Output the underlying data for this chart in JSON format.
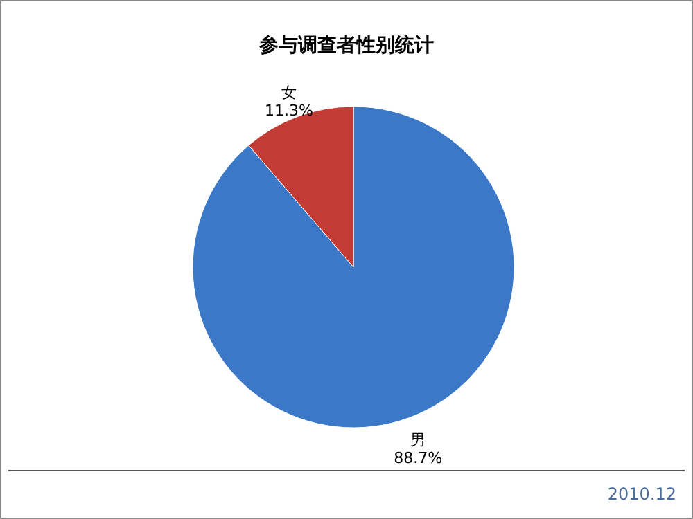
{
  "chart_data": {
    "type": "pie",
    "title": "参与调查者性别统计",
    "categories": [
      "男",
      "女"
    ],
    "values": [
      88.7,
      11.3
    ],
    "colors": [
      "#3b78c7",
      "#c23b34"
    ],
    "value_labels": [
      "88.7%",
      "11.3%"
    ],
    "legend": false,
    "annotations": [
      "2010.12"
    ]
  }
}
